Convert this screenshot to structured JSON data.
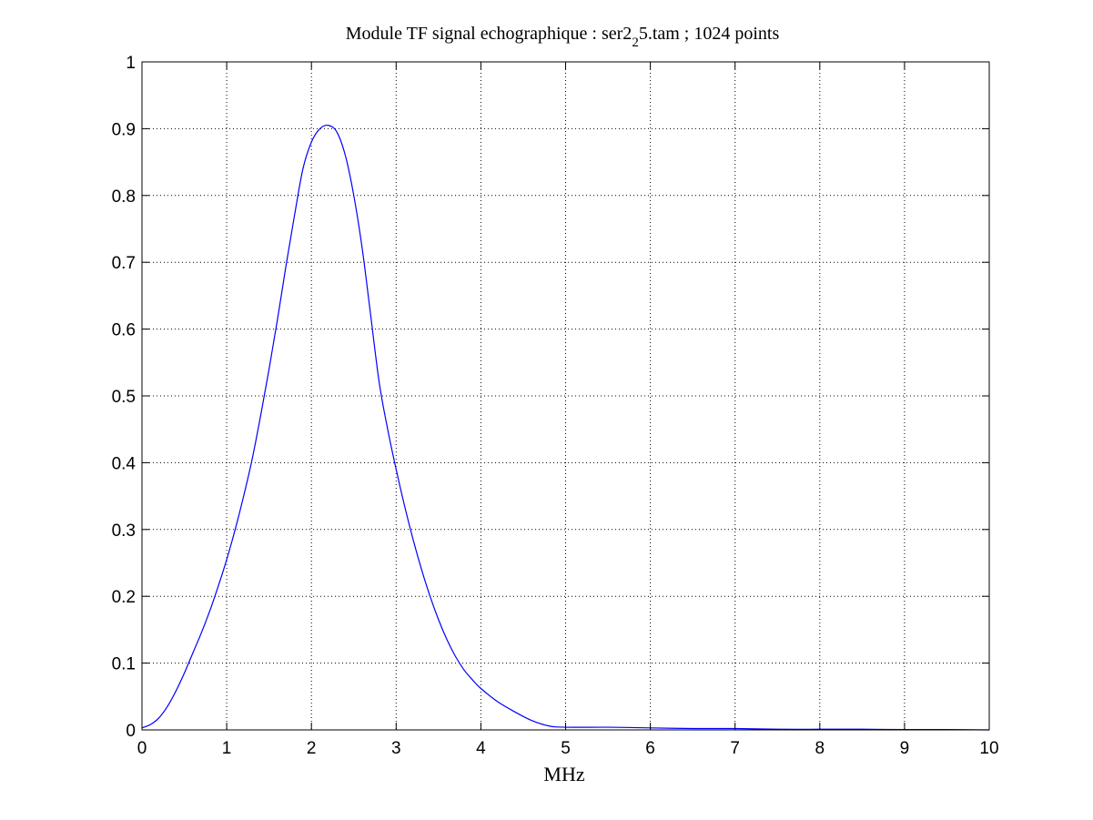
{
  "chart_data": {
    "type": "line",
    "title": {
      "main": "Module TF signal echographique : ser2",
      "subscript": "2",
      "rest": "5.tam ; 1024 points"
    },
    "xlabel": "MHz",
    "ylabel": "",
    "xlim": [
      0,
      10
    ],
    "ylim": [
      0,
      1
    ],
    "xticks": [
      "0",
      "1",
      "2",
      "3",
      "4",
      "5",
      "6",
      "7",
      "8",
      "9",
      "10"
    ],
    "yticks": [
      "0",
      "0.1",
      "0.2",
      "0.3",
      "0.4",
      "0.5",
      "0.6",
      "0.7",
      "0.8",
      "0.9",
      "1"
    ],
    "grid": true,
    "line_color": "#0000ff",
    "series": [
      {
        "x": [
          0,
          0.1,
          0.2,
          0.3,
          0.4,
          0.5,
          0.6,
          0.7,
          0.8,
          0.9,
          1.0,
          1.1,
          1.2,
          1.3,
          1.4,
          1.5,
          1.6,
          1.7,
          1.8,
          1.9,
          2.0,
          2.1,
          2.2,
          2.3,
          2.4,
          2.5,
          2.6,
          2.7,
          2.8,
          2.9,
          3.0,
          3.1,
          3.2,
          3.3,
          3.4,
          3.5,
          3.6,
          3.7,
          3.8,
          3.9,
          4.0,
          4.2,
          4.4,
          4.6,
          4.8,
          5.0,
          5.5,
          6.0,
          6.5,
          7.0,
          7.5,
          8.0,
          8.5,
          9.0,
          9.5,
          10.0
        ],
        "values": [
          0.003,
          0.008,
          0.018,
          0.035,
          0.058,
          0.085,
          0.115,
          0.145,
          0.178,
          0.215,
          0.255,
          0.3,
          0.35,
          0.405,
          0.47,
          0.54,
          0.615,
          0.695,
          0.77,
          0.84,
          0.88,
          0.9,
          0.905,
          0.895,
          0.86,
          0.8,
          0.72,
          0.62,
          0.52,
          0.45,
          0.39,
          0.335,
          0.285,
          0.24,
          0.2,
          0.165,
          0.135,
          0.11,
          0.09,
          0.075,
          0.062,
          0.042,
          0.027,
          0.014,
          0.006,
          0.004,
          0.004,
          0.003,
          0.002,
          0.002,
          0.001,
          0.001,
          0.001,
          0.0005,
          0.0005,
          0
        ]
      }
    ]
  }
}
